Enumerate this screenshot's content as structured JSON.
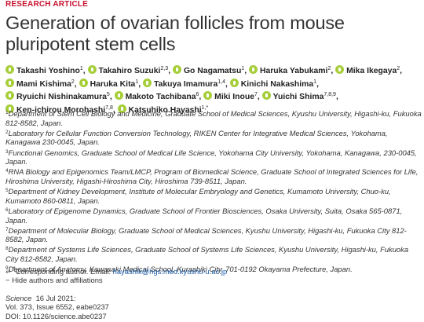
{
  "article_type": "RESEARCH ARTICLE",
  "title": "Generation of ovarian follicles from mouse pluripotent stem cells",
  "authors": [
    {
      "name": "Takashi Yoshino",
      "sup": "1"
    },
    {
      "name": "Takahiro Suzuki",
      "sup": "2,3"
    },
    {
      "name": "Go Nagamatsu",
      "sup": "1"
    },
    {
      "name": "Haruka Yabukami",
      "sup": "2"
    },
    {
      "name": "Mika Ikegaya",
      "sup": "2"
    },
    {
      "name": "Mami Kishima",
      "sup": "2"
    },
    {
      "name": "Haruka Kita",
      "sup": "1"
    },
    {
      "name": "Takuya Imamura",
      "sup": "1,4"
    },
    {
      "name": "Kinichi Nakashima",
      "sup": "1"
    },
    {
      "name": "Ryuichi Nishinakamura",
      "sup": "5"
    },
    {
      "name": "Makoto Tachibana",
      "sup": "6"
    },
    {
      "name": "Miki Inoue",
      "sup": "7"
    },
    {
      "name": "Yuichi Shima",
      "sup": "7,8,9"
    },
    {
      "name": "Ken-ichirou Morohashi",
      "sup": "7,8"
    },
    {
      "name": "Katsuhiko Hayashi",
      "sup": "1,*"
    }
  ],
  "affiliations": [
    {
      "num": "1",
      "text": "Department of Stem Cell Biology and Medicine, Graduate School of Medical Sciences, Kyushu University, Higashi-ku, Fukuoka 812-8582, Japan."
    },
    {
      "num": "2",
      "text": "Laboratory for Cellular Function Conversion Technology, RIKEN Center for Integrative Medical Sciences, Yokohama, Kanagawa 230-0045, Japan."
    },
    {
      "num": "3",
      "text": "Functional Genomics, Graduate School of Medical Life Science, Yokohama City University, Yokohama, Kanagawa, 230-0045, Japan."
    },
    {
      "num": "4",
      "text": "RNA Biology and Epigenomics Team/LMCP, Program of Biomedical Science, Graduate School of Integrated Sciences for Life, Hiroshima University, Higashi-Hiroshima City, Hiroshima 739-8511, Japan."
    },
    {
      "num": "5",
      "text": "Department of Kidney Development, Institute of Molecular Embryology and Genetics, Kumamoto University, Chuo-ku, Kumamoto 860-0811, Japan."
    },
    {
      "num": "6",
      "text": "Laboratory of Epigenome Dynamics, Graduate School of Frontier Biosciences, Osaka University, Suita, Osaka 565-0871, Japan."
    },
    {
      "num": "7",
      "text": "Department of Molecular Biology, Graduate School of Medical Sciences, Kyushu University, Higashi-ku, Fukuoka City 812-8582, Japan."
    },
    {
      "num": "8",
      "text": "Department of Systems Life Sciences, Graduate School of Systems Life Sciences, Kyushu University, Higashi-ku, Fukuoka City 812-8582, Japan."
    },
    {
      "num": "9",
      "text": "Department of Anatomy, Kawasaki Medical School, Kurashiki City, 701-0192 Okayama Prefecture, Japan."
    }
  ],
  "corresponding": {
    "label": "Corresponding author. Email:",
    "email": "hayashik@hgs.med.kyushu-u.ac.jp",
    "marker": "*"
  },
  "hide_toggle": "− Hide authors and affiliations",
  "citation": {
    "journal": "Science",
    "date": "16 Jul 2021:",
    "volume": "Vol. 373, Issue 6552, eabe0237",
    "doi": "DOI: 10.1126/science.abe0237"
  },
  "colors": {
    "article_type": "#c8102e",
    "orcid": "#a6ce39",
    "link": "#1a5aa6"
  }
}
